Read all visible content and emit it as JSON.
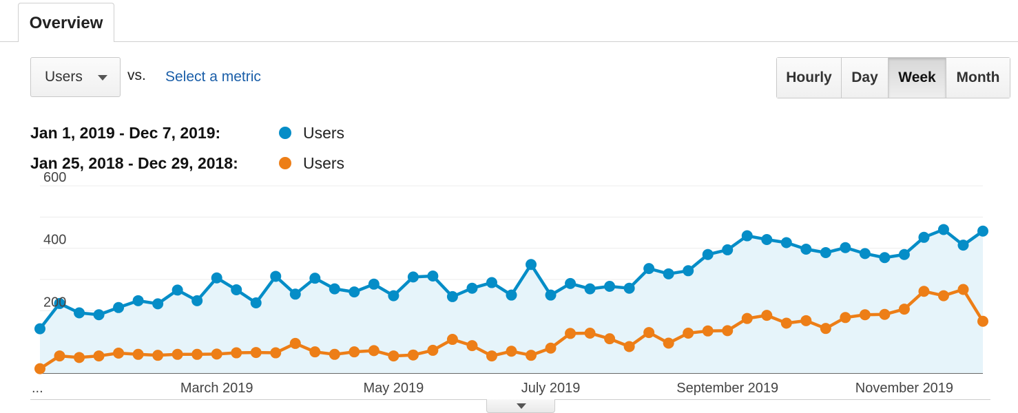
{
  "tabs": [
    {
      "label": "Overview"
    }
  ],
  "controls": {
    "metric": "Users",
    "vs": "vs.",
    "select_metric": "Select a metric",
    "granularity": [
      "Hourly",
      "Day",
      "Week",
      "Month"
    ],
    "active_granularity": "Week"
  },
  "legend": [
    {
      "range": "Jan 1, 2019 - Dec 7, 2019:",
      "metric": "Users",
      "color": "#058dc7"
    },
    {
      "range": "Jan 25, 2018 - Dec 29, 2018:",
      "metric": "Users",
      "color": "#ed7e17"
    }
  ],
  "chart_data": {
    "type": "area",
    "title": "",
    "xlabel": "",
    "ylabel": "",
    "ylim": [
      0,
      600
    ],
    "y_ticks": [
      200,
      400,
      600
    ],
    "x_tick_labels": [
      "...",
      "March 2019",
      "May 2019",
      "July 2019",
      "September 2019",
      "November 2019"
    ],
    "x_tick_indices": [
      0,
      9,
      18,
      26,
      35,
      44
    ],
    "series": [
      {
        "name": "Users",
        "range": "Jan 1, 2019 - Dec 7, 2019",
        "color": "#058dc7",
        "fill": "#e6f4fa",
        "values": [
          142,
          223,
          193,
          187,
          210,
          232,
          222,
          266,
          232,
          305,
          267,
          225,
          310,
          253,
          304,
          270,
          260,
          285,
          248,
          308,
          311,
          245,
          272,
          290,
          250,
          348,
          250,
          287,
          270,
          278,
          272,
          335,
          318,
          328,
          380,
          395,
          440,
          428,
          418,
          397,
          386,
          402,
          383,
          370,
          380,
          435,
          460,
          410,
          455
        ]
      },
      {
        "name": "Users",
        "range": "Jan 25, 2018 - Dec 29, 2018",
        "color": "#ed7e17",
        "values": [
          14,
          55,
          50,
          55,
          64,
          60,
          57,
          60,
          60,
          61,
          65,
          66,
          65,
          95,
          68,
          60,
          68,
          72,
          55,
          58,
          73,
          108,
          88,
          55,
          70,
          57,
          80,
          127,
          128,
          110,
          85,
          130,
          96,
          128,
          135,
          136,
          175,
          185,
          160,
          168,
          143,
          178,
          187,
          188,
          205,
          262,
          248,
          268,
          166
        ]
      }
    ]
  }
}
